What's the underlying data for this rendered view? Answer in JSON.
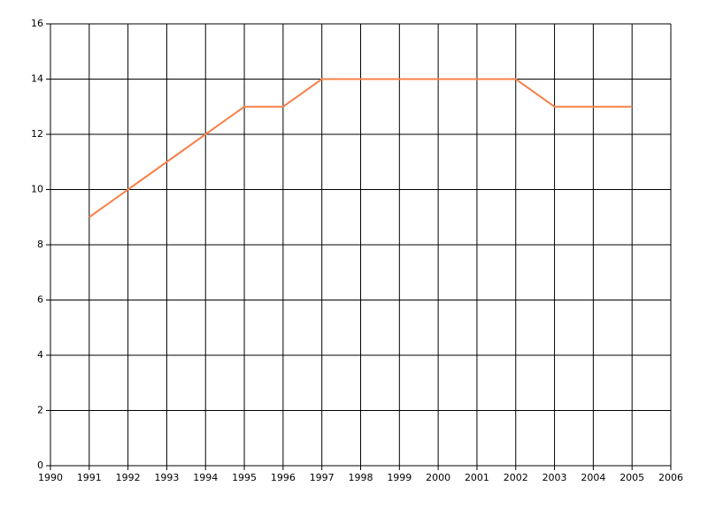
{
  "chart_data": {
    "type": "line",
    "x": [
      1991,
      1992,
      1993,
      1994,
      1995,
      1996,
      1997,
      1998,
      1999,
      2000,
      2001,
      2002,
      2003,
      2004,
      2005
    ],
    "series": [
      {
        "color": "#f5824a",
        "values": [
          9,
          10,
          11,
          12,
          13,
          13,
          14,
          14,
          14,
          14,
          14,
          14,
          13,
          13,
          13
        ]
      }
    ],
    "xlim": [
      1990,
      2006
    ],
    "xticks": [
      1990,
      1991,
      1992,
      1993,
      1994,
      1995,
      1996,
      1997,
      1998,
      1999,
      2000,
      2001,
      2002,
      2003,
      2004,
      2005,
      2006
    ],
    "ylim": [
      0,
      16
    ],
    "yticks": [
      0,
      2,
      4,
      6,
      8,
      10,
      12,
      14,
      16
    ],
    "grid": true
  }
}
